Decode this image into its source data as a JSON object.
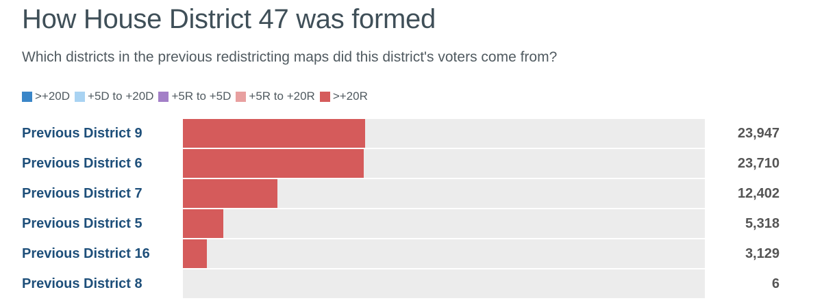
{
  "title": "How House District 47 was formed",
  "subtitle": "Which districts in the previous redistricting maps did this district's voters come from?",
  "legend": [
    {
      "label": ">+20D",
      "color": "#3a86c8"
    },
    {
      "label": "+5D to +20D",
      "color": "#a9d3f2"
    },
    {
      "label": "+5R to +5D",
      "color": "#a37fc7"
    },
    {
      "label": "+5R to +20R",
      "color": "#e8a0a0"
    },
    {
      "label": ">+20R",
      "color": "#d55b5b"
    }
  ],
  "chart_data": {
    "type": "bar",
    "orientation": "horizontal",
    "xlim": [
      0,
      68500
    ],
    "grid": false,
    "legend_position": "top-left",
    "categories": [
      "Previous District 9",
      "Previous District 6",
      "Previous District 7",
      "Previous District 5",
      "Previous District 16",
      "Previous District 8"
    ],
    "values": [
      23947,
      23710,
      12402,
      5318,
      3129,
      6
    ],
    "value_labels": [
      "23,947",
      "23,710",
      "12,402",
      "5,318",
      "3,129",
      "6"
    ],
    "value_categories": [
      ">+20R",
      ">+20R",
      ">+20R",
      ">+20R",
      ">+20R",
      ">+20R"
    ]
  }
}
